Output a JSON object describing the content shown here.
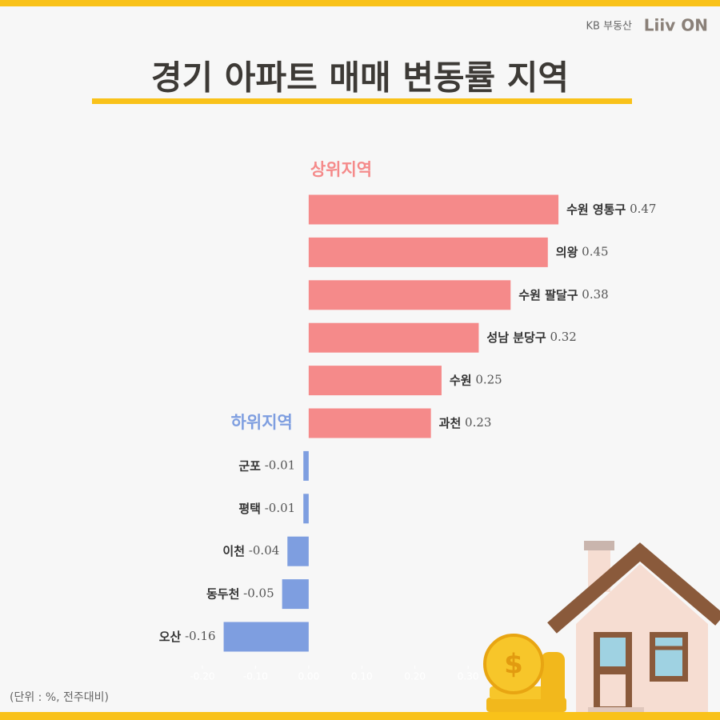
{
  "brand": {
    "company": "KB 부동산",
    "product": "Liiv ON"
  },
  "chart_data": {
    "type": "hbar",
    "title": "경기 아파트 매매 변동률 지역",
    "note": "(단위 : %, 전주대비)",
    "xlim": [
      -0.2,
      0.5
    ],
    "xticks": [
      {
        "value": -0.2,
        "label": "-0.20"
      },
      {
        "value": -0.1,
        "label": "-0.10"
      },
      {
        "value": 0,
        "label": "0.00"
      },
      {
        "value": 0.1,
        "label": "0.10"
      },
      {
        "value": 0.2,
        "label": "0.20"
      },
      {
        "value": 0.3,
        "label": "0.30"
      }
    ],
    "series": [
      {
        "name": "상위지역",
        "color": "#f58a8a",
        "categories": [
          "수원 영통구",
          "의왕",
          "수원 팔달구",
          "성남 분당구",
          "수원",
          "과천"
        ],
        "values": [
          0.47,
          0.45,
          0.38,
          0.32,
          0.25,
          0.23
        ]
      },
      {
        "name": "하위지역",
        "color": "#7e9ee0",
        "categories": [
          "군포",
          "평택",
          "이천",
          "동두천",
          "오산"
        ],
        "values": [
          -0.01,
          -0.01,
          -0.04,
          -0.05,
          -0.16
        ]
      }
    ]
  }
}
